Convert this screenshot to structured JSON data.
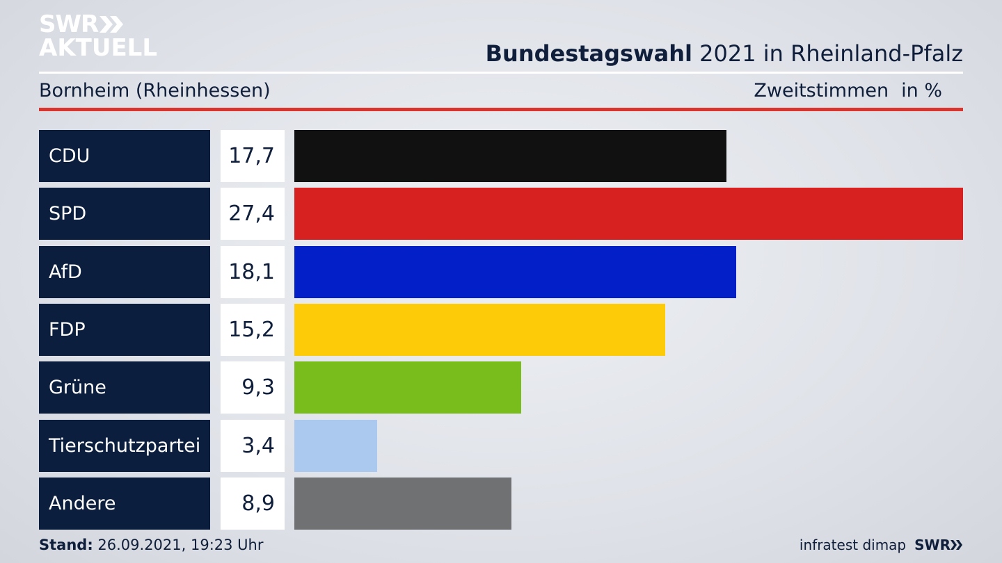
{
  "logo": {
    "line1": "SWR",
    "line2": "AKTUELL"
  },
  "header": {
    "title_bold": "Bundestagswahl",
    "title_rest": " 2021 in Rheinland-Pfalz"
  },
  "subheader": {
    "location": "Bornheim (Rheinhessen)",
    "measure": "Zweitstimmen",
    "unit": "in %"
  },
  "footer": {
    "stand_label": "Stand:",
    "stand_value": " 26.09.2021, 19:23 Uhr",
    "source": "infratest dimap",
    "brand": "SWR"
  },
  "colors": {
    "cdu": "#111111",
    "spd": "#d72020",
    "afd": "#0320c8",
    "fdp": "#fdcb07",
    "gruene": "#78bd1c",
    "tierschutz": "#abc9ef",
    "andere": "#707173"
  },
  "chart_data": {
    "type": "bar",
    "orientation": "horizontal",
    "categories": [
      "CDU",
      "SPD",
      "AfD",
      "FDP",
      "Grüne",
      "Tierschutzpartei",
      "Andere"
    ],
    "values": [
      17.7,
      27.4,
      18.1,
      15.2,
      9.3,
      3.4,
      8.9
    ],
    "value_labels": [
      "17,7",
      "27,4",
      "18,1",
      "15,2",
      "9,3",
      "3,4",
      "8,9"
    ],
    "colors": [
      "#111111",
      "#d72020",
      "#0320c8",
      "#fdcb07",
      "#78bd1c",
      "#abc9ef",
      "#707173"
    ],
    "xlim": [
      0,
      27.4
    ]
  }
}
